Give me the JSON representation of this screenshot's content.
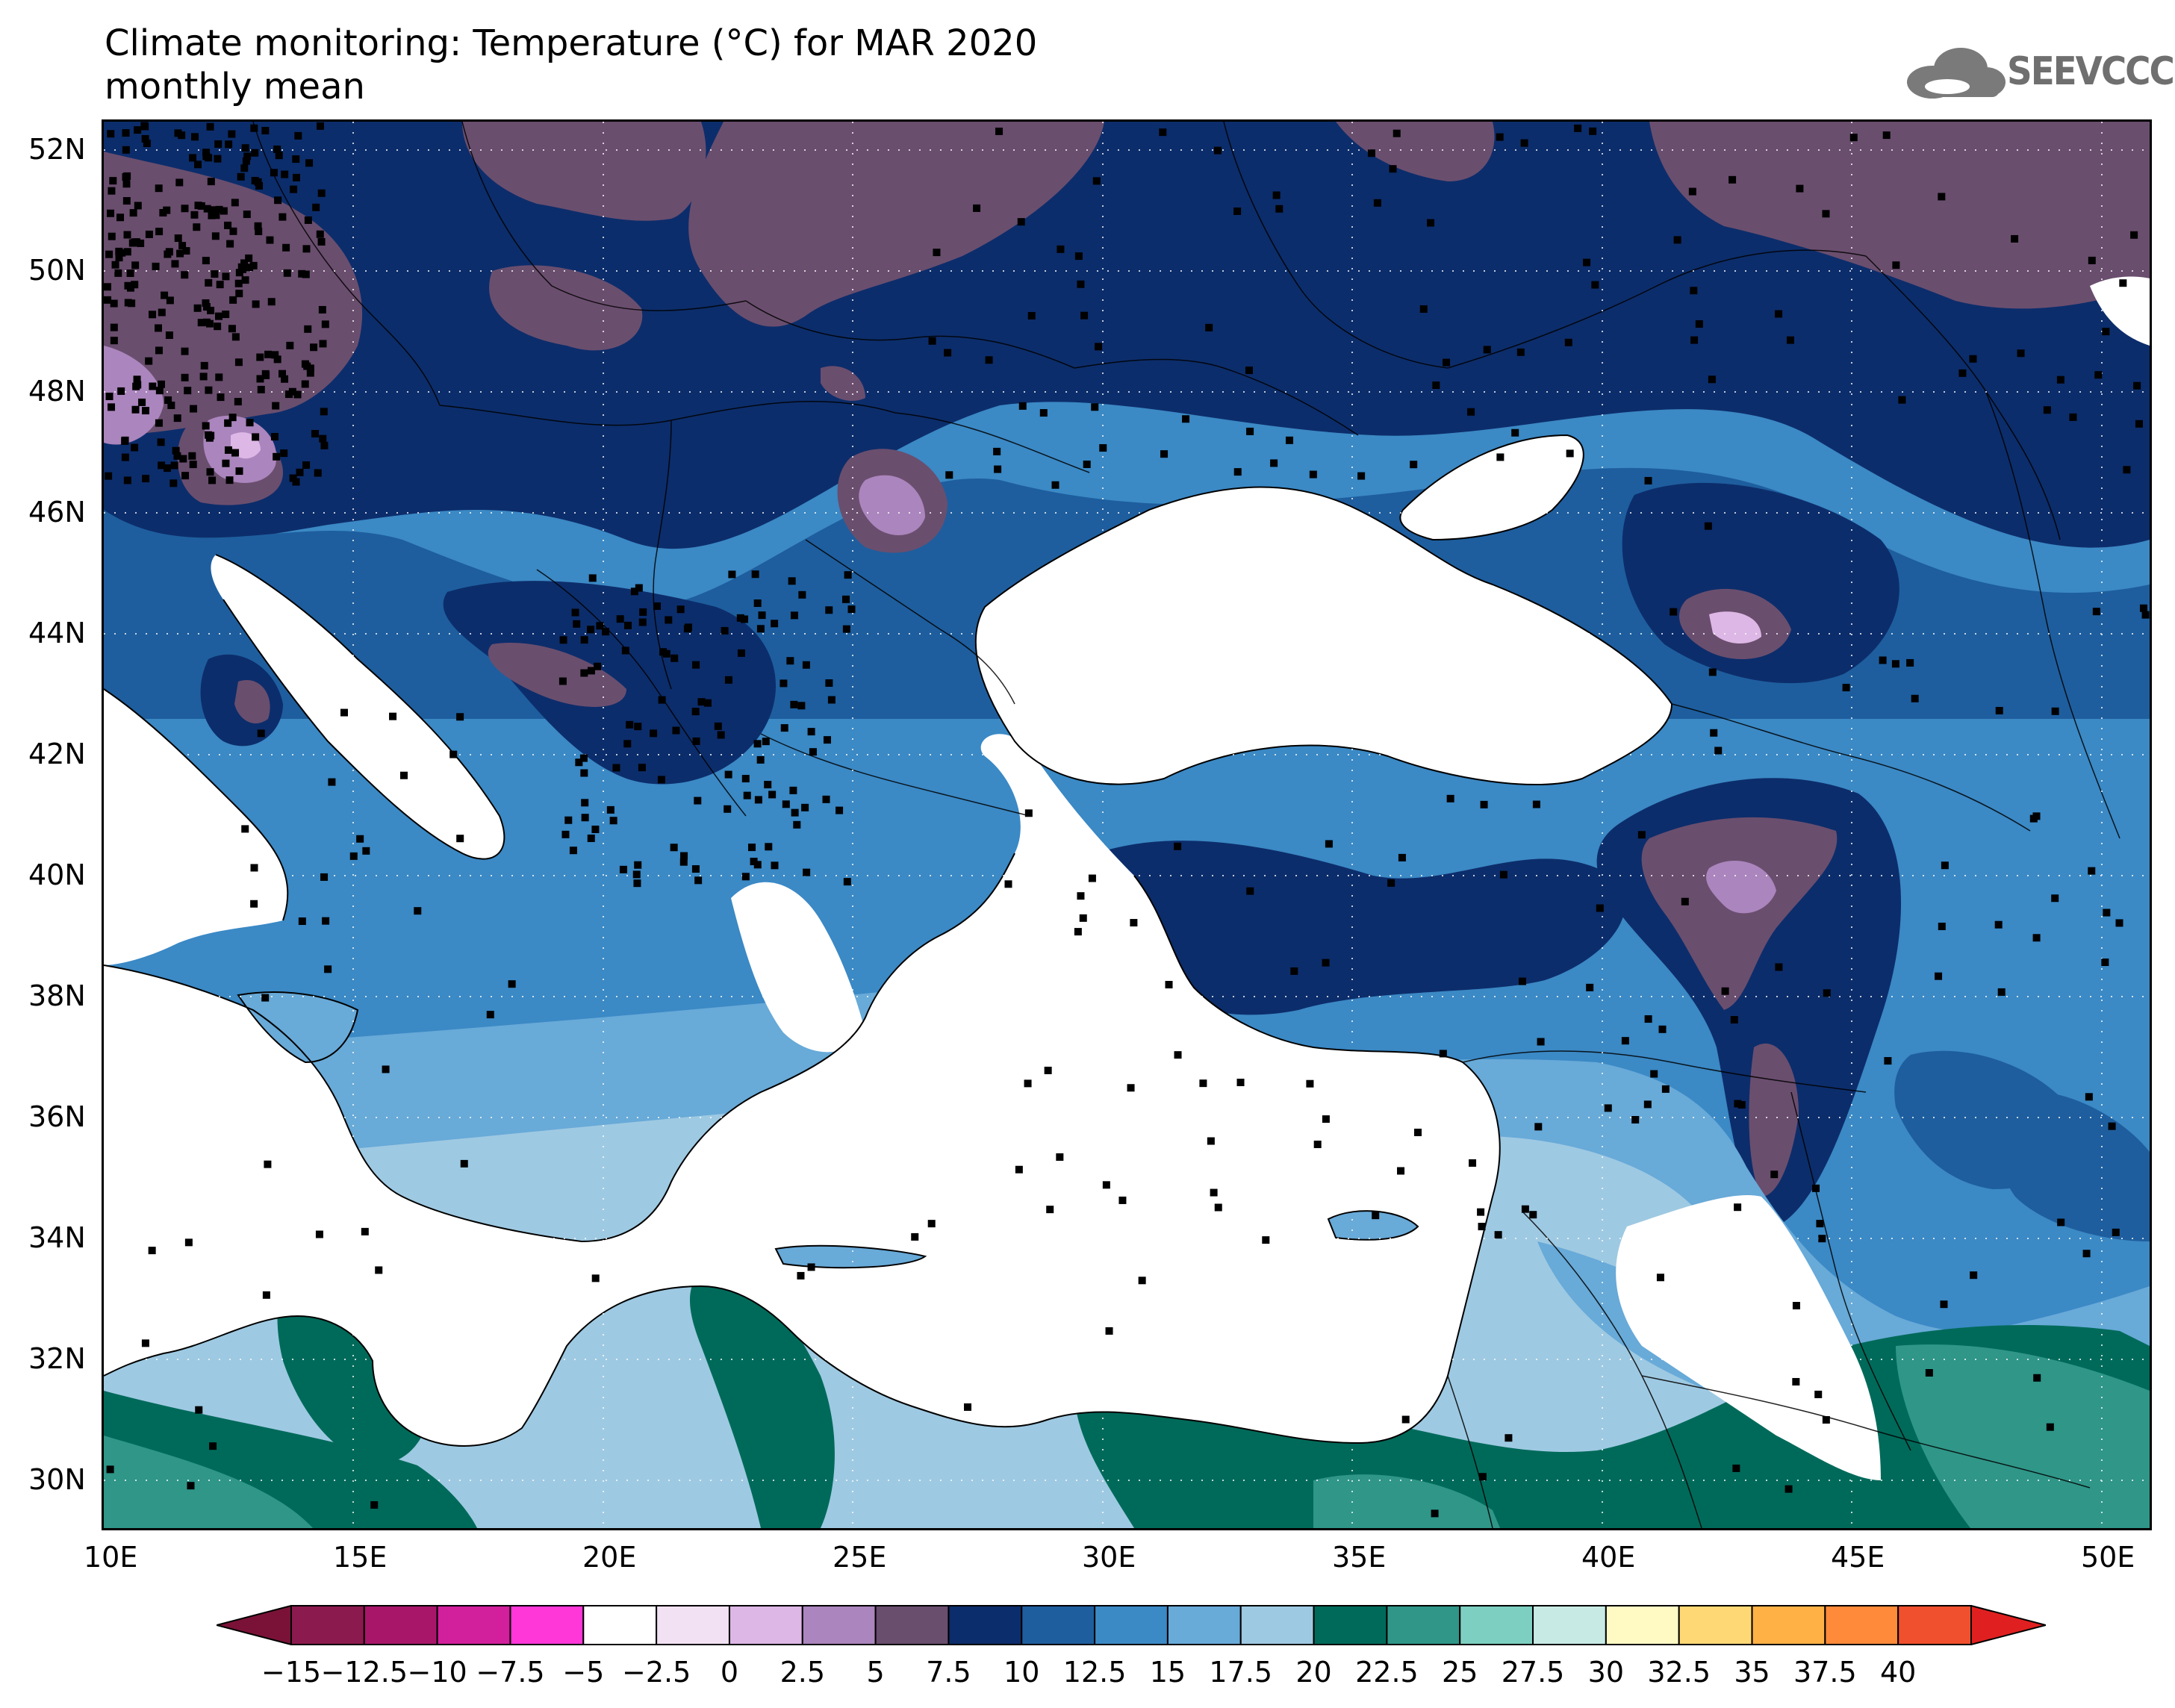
{
  "header": {
    "title_line1": "Climate monitoring: Temperature (°C) for MAR 2020",
    "title_line2": "monthly mean"
  },
  "logo": {
    "text": "SEEVCCC",
    "icon": "cloud-icon"
  },
  "map": {
    "lat_labels": [
      "52N",
      "50N",
      "48N",
      "46N",
      "44N",
      "42N",
      "40N",
      "38N",
      "36N",
      "34N",
      "32N",
      "30N"
    ],
    "lon_labels": [
      "10E",
      "15E",
      "20E",
      "25E",
      "30E",
      "35E",
      "40E",
      "45E",
      "50E"
    ],
    "sea_color": "#ffffff"
  },
  "legend": {
    "labels": [
      "-15",
      "-12.5",
      "-10",
      "-7.5",
      "-5",
      "-2.5",
      "0",
      "2.5",
      "5",
      "7.5",
      "10",
      "12.5",
      "15",
      "17.5",
      "20",
      "22.5",
      "25",
      "27.5",
      "30",
      "32.5",
      "35",
      "37.5",
      "40"
    ],
    "colors": [
      "#8b1a4e",
      "#a8166a",
      "#d21f9c",
      "#ff37d9",
      "#ffffff",
      "#f2e1f3",
      "#ddb7e5",
      "#ab85bd",
      "#6a4e6e",
      "#0c2d6b",
      "#1e5e9e",
      "#3b89c5",
      "#68aad8",
      "#9ec9e2",
      "#006a5a",
      "#2f9688",
      "#7dcfc1",
      "#c7ebe4",
      "#fff9c4",
      "#ffd876",
      "#ffb146",
      "#ff8a3a",
      "#f0502e"
    ],
    "low_arrow_color": "#7a1237",
    "high_arrow_color": "#e02020"
  }
}
